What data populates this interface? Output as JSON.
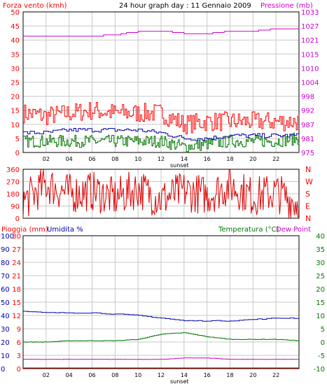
{
  "colors": {
    "red": "#ff0000",
    "darkred": "#dd0000",
    "magenta": "#cc00cc",
    "blue": "#0000aa",
    "green": "#007700",
    "grid": "#c8c8c8",
    "text": "#000000"
  },
  "x_ticks": [
    "02",
    "04",
    "06",
    "08",
    "10",
    "12",
    "14",
    "16",
    "18",
    "20",
    "22"
  ],
  "x_end_label": "",
  "sunset_label": "sunset",
  "panel1": {
    "title": "24 hour graph day : 11 Gennaio 2009",
    "left_label": "Forza vento (kmh)",
    "right_label": "Pressione (mb)",
    "left_ticks": [
      "50",
      "45",
      "40",
      "35",
      "30",
      "25",
      "20",
      "15",
      "10",
      "5",
      "0"
    ],
    "right_ticks": [
      "1033",
      "1027",
      "1021",
      "1015",
      "1010",
      "1004",
      "998",
      "992",
      "987",
      "981",
      "975"
    ]
  },
  "panel2": {
    "left_ticks": [
      "360",
      "270",
      "180",
      "90",
      "0"
    ],
    "right_ticks": [
      "N",
      "W",
      "S",
      "E",
      "N"
    ]
  },
  "panel3": {
    "label_rain": "Pioggia (mm)",
    "label_humidity": "Umidita %",
    "label_temp": "Temperatura (°C)",
    "label_dew": "Dew Point",
    "humidity_ticks": [
      "100",
      "90",
      "80",
      "70",
      "60",
      "50",
      "40",
      "30",
      "20",
      "10",
      "0"
    ],
    "rain_ticks": [
      "30",
      "27",
      "24",
      "21",
      "18",
      "15",
      "12",
      "9",
      "6",
      "3",
      "0"
    ],
    "temp_ticks": [
      "40",
      "35",
      "30",
      "25",
      "20",
      "15",
      "10",
      "5",
      "0",
      "-5",
      "-10"
    ]
  },
  "chart_data": [
    {
      "type": "line",
      "title": "24 hour graph day : 11 Gennaio 2009",
      "ylabel": "Forza vento (kmh)",
      "y2label": "Pressione (mb)",
      "ylim": [
        0,
        50
      ],
      "y2lim": [
        975,
        1033
      ],
      "x": [
        0,
        2,
        4,
        6,
        8,
        10,
        12,
        14,
        16,
        18,
        20,
        22,
        24
      ],
      "series": [
        {
          "name": "",
          "color": "#ff0000",
          "axis": "left",
          "values": [
            14,
            13,
            14,
            15,
            14,
            14,
            14,
            10,
            11,
            11,
            11,
            11,
            11
          ]
        },
        {
          "name": "",
          "color": "#0000aa",
          "axis": "left",
          "values": [
            7,
            7,
            8,
            8,
            8,
            8,
            7,
            5,
            5,
            6,
            6,
            6,
            6
          ]
        },
        {
          "name": "",
          "color": "#007700",
          "axis": "left",
          "values": [
            4,
            4,
            4,
            4,
            4,
            4,
            4,
            2,
            3,
            4,
            4,
            4,
            5
          ]
        },
        {
          "name": "",
          "color": "#cc00cc",
          "axis": "right",
          "values": [
            1023,
            1023,
            1023,
            1023,
            1023.5,
            1025,
            1025,
            1024,
            1024,
            1025,
            1025,
            1026,
            1026
          ]
        }
      ]
    },
    {
      "type": "line",
      "ylim": [
        0,
        360
      ],
      "x": [
        0,
        2,
        4,
        6,
        8,
        10,
        12,
        14,
        16,
        18,
        20,
        22,
        24
      ],
      "series": [
        {
          "name": "",
          "color": "#dd0000",
          "values": [
            120,
            250,
            180,
            200,
            150,
            220,
            140,
            200,
            170,
            240,
            160,
            190,
            110
          ]
        }
      ]
    },
    {
      "type": "line",
      "ylabel": "Pioggia (mm)",
      "y2label": "Temperatura (°C)",
      "ylim": [
        0,
        100
      ],
      "y2lim": [
        -10,
        40
      ],
      "x": [
        0,
        2,
        4,
        6,
        8,
        10,
        12,
        14,
        16,
        18,
        20,
        22,
        24
      ],
      "series": [
        {
          "name": "Umidita %",
          "color": "#0000aa",
          "axis": "left",
          "values": [
            43,
            42,
            42,
            42,
            41,
            40,
            38,
            36,
            36,
            36,
            37,
            38,
            38
          ]
        },
        {
          "name": "Temperatura (°C)",
          "color": "#007700",
          "axis": "right",
          "values": [
            0,
            0,
            0.5,
            0.5,
            0.5,
            1,
            3,
            3.5,
            2,
            1,
            1,
            1,
            0.5
          ]
        },
        {
          "name": "Dew Point",
          "color": "#cc00cc",
          "axis": "right",
          "values": [
            -6.5,
            -6.5,
            -6.5,
            -6.5,
            -6.5,
            -6.5,
            -6.5,
            -6,
            -6,
            -6.5,
            -6.5,
            -6.5,
            -6.5
          ]
        },
        {
          "name": "Pioggia (mm)",
          "color": "#ff0000",
          "axis": "left",
          "values": [
            0,
            0,
            0,
            0,
            0,
            0,
            0,
            0,
            0,
            0,
            0,
            0,
            0
          ]
        }
      ]
    }
  ]
}
